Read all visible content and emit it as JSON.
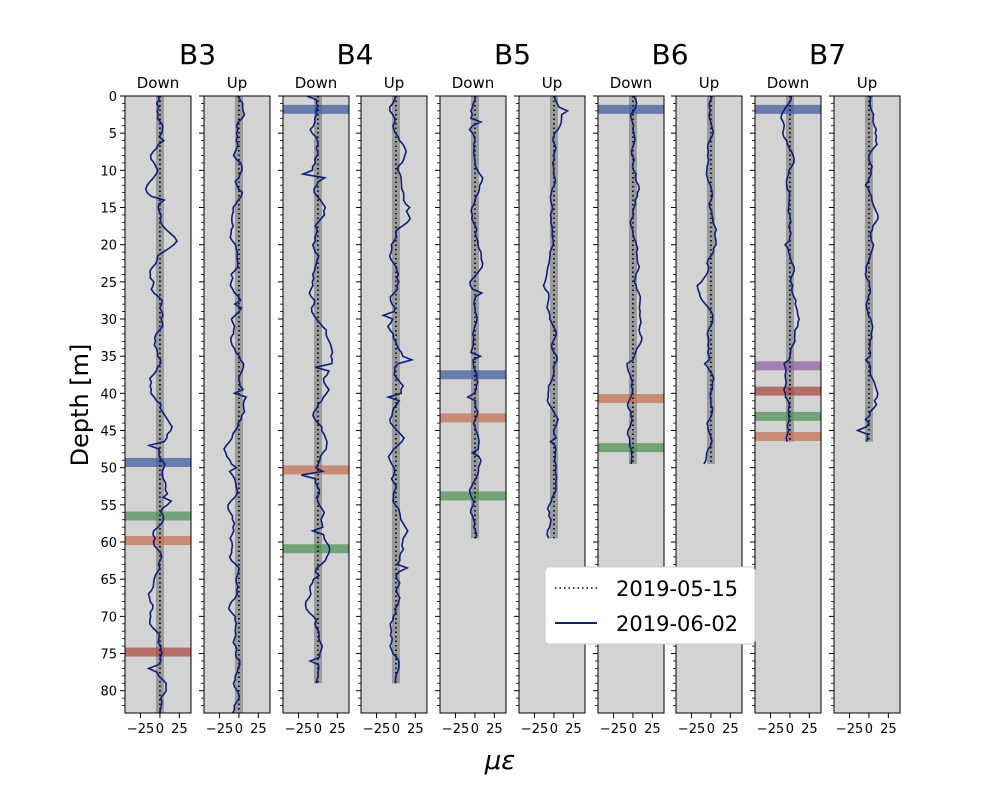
{
  "chart_data": {
    "type": "line",
    "xlabel": "με",
    "ylabel": "Depth [m]",
    "ylim": [
      83,
      0
    ],
    "xlim": [
      -45,
      40
    ],
    "yticks": [
      0,
      5,
      10,
      15,
      20,
      25,
      30,
      35,
      40,
      45,
      50,
      55,
      60,
      65,
      70,
      75,
      80
    ],
    "xticks": [
      -25,
      0,
      25
    ],
    "boreholes": [
      {
        "name": "B3",
        "depth": 83,
        "bands": [
          {
            "depth": 49.3,
            "color": "#3f5a9f"
          },
          {
            "depth": 56.5,
            "color": "#4e8f56"
          },
          {
            "depth": 59.8,
            "color": "#c3704f"
          },
          {
            "depth": 74.8,
            "color": "#a8453f"
          }
        ]
      },
      {
        "name": "B4",
        "depth": 79,
        "bands": [
          {
            "depth": 1.8,
            "color": "#3f5a9f"
          },
          {
            "depth": 50.3,
            "color": "#c3704f"
          },
          {
            "depth": 60.9,
            "color": "#4e8f56"
          }
        ]
      },
      {
        "name": "B5",
        "depth": 59.5,
        "bands": [
          {
            "depth": 37.5,
            "color": "#3f5a9f"
          },
          {
            "depth": 43.3,
            "color": "#c3704f"
          },
          {
            "depth": 53.8,
            "color": "#4e8f56"
          }
        ]
      },
      {
        "name": "B6",
        "depth": 49.5,
        "bands": [
          {
            "depth": 1.8,
            "color": "#3f5a9f"
          },
          {
            "depth": 40.7,
            "color": "#c3704f"
          },
          {
            "depth": 47.3,
            "color": "#4e8f56"
          }
        ]
      },
      {
        "name": "B7",
        "depth": 46.5,
        "bands": [
          {
            "depth": 1.8,
            "color": "#3f5a9f"
          },
          {
            "depth": 36.3,
            "color": "#8a5f9e"
          },
          {
            "depth": 39.7,
            "color": "#a8453f"
          },
          {
            "depth": 43.1,
            "color": "#4e8f56"
          },
          {
            "depth": 45.8,
            "color": "#c3704f"
          }
        ]
      }
    ],
    "panel_labels": [
      "Down",
      "Up"
    ],
    "series": [
      {
        "name": "2019-05-15",
        "style": "dotted",
        "color": "#000000",
        "x": 0
      },
      {
        "name": "2019-06-02",
        "style": "solid",
        "color": "#0d1f78"
      }
    ],
    "legend": "lower-right",
    "panel_background": "#d3d3d3"
  }
}
